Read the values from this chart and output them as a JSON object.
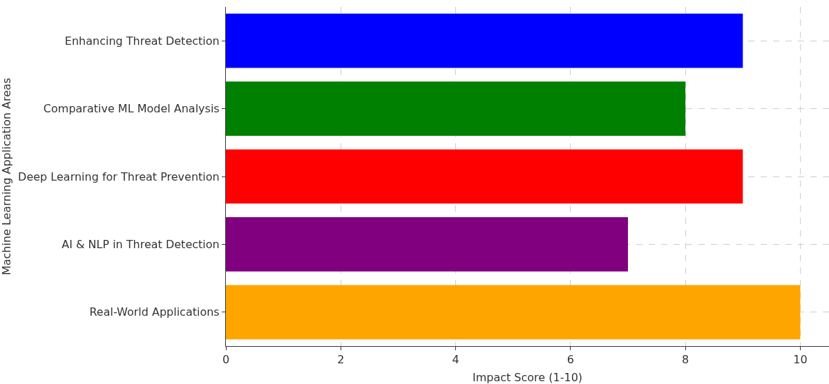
{
  "chart_data": {
    "type": "bar",
    "orientation": "horizontal",
    "xlabel": "Impact Score (1-10)",
    "ylabel": "Machine Learning Application Areas",
    "categories": [
      "Enhancing Threat Detection",
      "Comparative ML Model Analysis",
      "Deep Learning for Threat Prevention",
      "AI & NLP in Threat Detection",
      "Real-World Applications"
    ],
    "values": [
      9,
      8,
      9,
      7,
      10
    ],
    "colors": [
      "#0000ff",
      "#008000",
      "#ff0000",
      "#800080",
      "#ffa500"
    ],
    "xlim": [
      0,
      10.5
    ],
    "xticks": [
      0,
      2,
      4,
      6,
      8,
      10
    ],
    "grid": true
  }
}
